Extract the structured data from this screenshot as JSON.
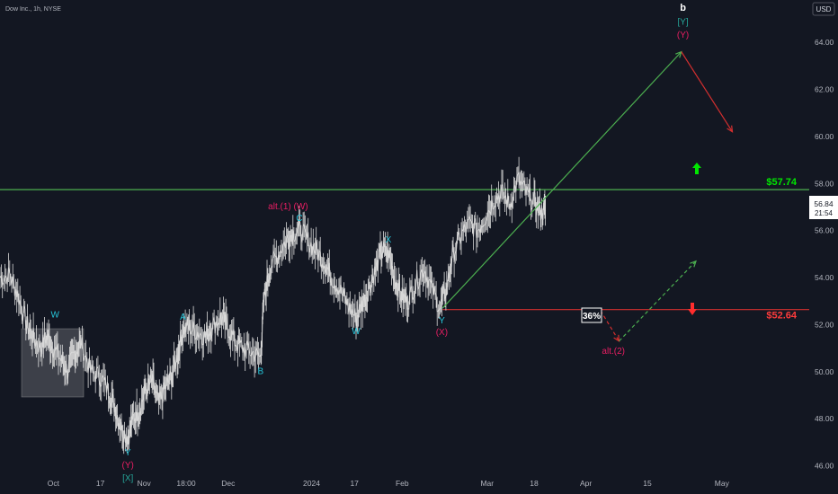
{
  "header": {
    "title": "Dow Inc., 1h, NYSE",
    "currency": "USD"
  },
  "price_tags": {
    "last": "56.84",
    "countdown": "21:54"
  },
  "colors": {
    "background": "#131722",
    "candle": "#d8d8d8",
    "green_line": "#4caf50",
    "red_line": "#d32f2f",
    "cyan": "#26c6da",
    "magenta": "#e91e63",
    "teal": "#26a69a"
  },
  "chart_data": {
    "type": "line",
    "title": "",
    "ylim": [
      44.8,
      65.8
    ],
    "yticks": [
      "46.00",
      "48.00",
      "50.00",
      "52.00",
      "54.00",
      "56.00",
      "58.00",
      "60.00",
      "62.00",
      "64.00"
    ],
    "yticks_values": [
      46,
      48,
      50,
      52,
      54,
      56,
      58,
      60,
      62,
      64
    ],
    "xticks": [
      "Oct",
      "17",
      "Nov",
      "18:00",
      "Dec",
      "2024",
      "17",
      "Feb",
      "Mar",
      "18",
      "Apr",
      "15",
      "May"
    ],
    "xticks_pos": [
      0.066,
      0.124,
      0.178,
      0.23,
      0.282,
      0.385,
      0.438,
      0.497,
      0.602,
      0.66,
      0.724,
      0.8,
      0.892
    ],
    "grid": false,
    "series": [
      {
        "values": [
          [
            0.0,
            54.0
          ],
          [
            0.012,
            54.1
          ],
          [
            0.022,
            53.3
          ],
          [
            0.032,
            52.1
          ],
          [
            0.04,
            51.5
          ],
          [
            0.05,
            51.0
          ],
          [
            0.058,
            51.5
          ],
          [
            0.066,
            51.0
          ],
          [
            0.076,
            50.5
          ],
          [
            0.084,
            50.0
          ],
          [
            0.092,
            50.8
          ],
          [
            0.1,
            51.2
          ],
          [
            0.112,
            50.0
          ],
          [
            0.124,
            49.8
          ],
          [
            0.134,
            49.2
          ],
          [
            0.142,
            48.5
          ],
          [
            0.15,
            47.6
          ],
          [
            0.158,
            47.2
          ],
          [
            0.164,
            48.0
          ],
          [
            0.172,
            48.4
          ],
          [
            0.18,
            49.2
          ],
          [
            0.188,
            49.6
          ],
          [
            0.196,
            48.6
          ],
          [
            0.204,
            49.3
          ],
          [
            0.212,
            49.8
          ],
          [
            0.22,
            50.8
          ],
          [
            0.226,
            51.8
          ],
          [
            0.234,
            51.9
          ],
          [
            0.244,
            51.7
          ],
          [
            0.254,
            51.5
          ],
          [
            0.262,
            51.9
          ],
          [
            0.272,
            52.3
          ],
          [
            0.28,
            52.0
          ],
          [
            0.29,
            51.3
          ],
          [
            0.3,
            51.0
          ],
          [
            0.312,
            50.8
          ],
          [
            0.322,
            50.6
          ],
          [
            0.326,
            53.0
          ],
          [
            0.334,
            54.5
          ],
          [
            0.344,
            55.0
          ],
          [
            0.354,
            55.6
          ],
          [
            0.362,
            55.9
          ],
          [
            0.372,
            56.0
          ],
          [
            0.382,
            55.5
          ],
          [
            0.392,
            55.1
          ],
          [
            0.402,
            54.6
          ],
          [
            0.41,
            54.0
          ],
          [
            0.42,
            53.5
          ],
          [
            0.43,
            52.8
          ],
          [
            0.44,
            52.3
          ],
          [
            0.448,
            52.9
          ],
          [
            0.456,
            53.6
          ],
          [
            0.464,
            54.3
          ],
          [
            0.472,
            55.2
          ],
          [
            0.48,
            55.0
          ],
          [
            0.488,
            54.0
          ],
          [
            0.496,
            53.2
          ],
          [
            0.504,
            53.0
          ],
          [
            0.514,
            53.8
          ],
          [
            0.524,
            54.4
          ],
          [
            0.534,
            53.5
          ],
          [
            0.544,
            52.7
          ],
          [
            0.552,
            53.6
          ],
          [
            0.56,
            55.0
          ],
          [
            0.57,
            55.8
          ],
          [
            0.58,
            56.3
          ],
          [
            0.59,
            56.0
          ],
          [
            0.6,
            56.6
          ],
          [
            0.61,
            57.3
          ],
          [
            0.62,
            57.6
          ],
          [
            0.63,
            57.1
          ],
          [
            0.64,
            58.2
          ],
          [
            0.65,
            57.6
          ],
          [
            0.66,
            57.2
          ],
          [
            0.668,
            56.8
          ],
          [
            0.674,
            56.84
          ]
        ]
      }
    ],
    "h_lines": [
      {
        "price": 57.74,
        "label": "$57.74",
        "color": "#4caf50"
      },
      {
        "price": 52.64,
        "label": "$52.64",
        "color": "#d32f2f"
      }
    ],
    "projections": [
      {
        "from": [
          0.547,
          52.7
        ],
        "to": [
          0.842,
          63.6
        ],
        "color": "#4caf50",
        "style": "solid"
      },
      {
        "from": [
          0.842,
          63.6
        ],
        "to": [
          0.905,
          60.2
        ],
        "color": "#d32f2f",
        "style": "solid"
      },
      {
        "from": [
          0.742,
          52.6
        ],
        "to": [
          0.765,
          51.3
        ],
        "color": "#d32f2f",
        "style": "dashed"
      },
      {
        "from": [
          0.765,
          51.3
        ],
        "to": [
          0.86,
          54.7
        ],
        "color": "#4caf50",
        "style": "dashed"
      }
    ],
    "annotations": [
      {
        "text": "W",
        "x": 0.068,
        "y": 52.3,
        "color": "#26c6da"
      },
      {
        "text": "Y",
        "x": 0.158,
        "y": 46.45,
        "color": "#26c6da"
      },
      {
        "text": "(Y)",
        "x": 0.158,
        "y": 45.9,
        "color": "#e91e63"
      },
      {
        "text": "[X]",
        "x": 0.158,
        "y": 45.35,
        "color": "#26a69a"
      },
      {
        "text": "A",
        "x": 0.226,
        "y": 52.2,
        "color": "#26c6da"
      },
      {
        "text": "B",
        "x": 0.322,
        "y": 49.9,
        "color": "#26c6da"
      },
      {
        "text": "alt.(1) (W)",
        "x": 0.356,
        "y": 56.9,
        "color": "#e91e63"
      },
      {
        "text": "C",
        "x": 0.37,
        "y": 56.4,
        "color": "#26c6da"
      },
      {
        "text": "X",
        "x": 0.48,
        "y": 55.5,
        "color": "#26c6da"
      },
      {
        "text": "W",
        "x": 0.44,
        "y": 51.6,
        "color": "#26c6da"
      },
      {
        "text": "Y",
        "x": 0.546,
        "y": 52.05,
        "color": "#26c6da"
      },
      {
        "text": "(X)",
        "x": 0.546,
        "y": 51.55,
        "color": "#e91e63"
      },
      {
        "text": "b",
        "x": 0.844,
        "y": 65.35,
        "color": "#ffffff"
      },
      {
        "text": "[Y]",
        "x": 0.844,
        "y": 64.75,
        "color": "#26a69a"
      },
      {
        "text": "(Y)",
        "x": 0.844,
        "y": 64.2,
        "color": "#e91e63"
      },
      {
        "text": "alt.(2)",
        "x": 0.758,
        "y": 50.75,
        "color": "#e91e63"
      }
    ],
    "box_label": "36%"
  }
}
